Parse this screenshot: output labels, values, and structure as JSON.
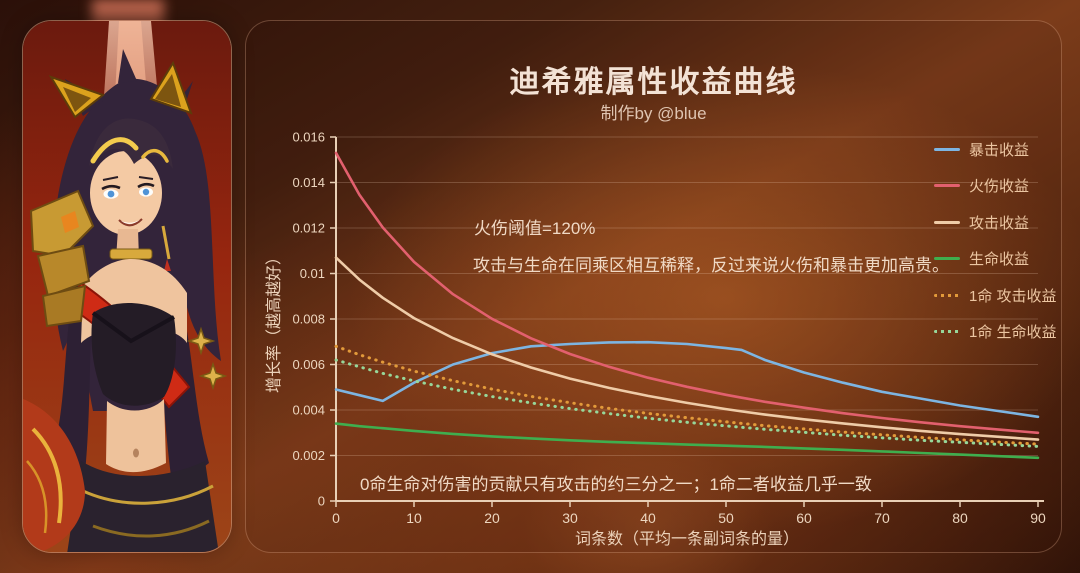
{
  "chart_data": {
    "type": "line",
    "title": "迪希雅属性收益曲线",
    "subtitle": "制作by @blue",
    "xlabel": "词条数（平均一条副词条的量）",
    "ylabel": "增长率（越高越好）",
    "xlim": [
      0,
      90
    ],
    "ylim": [
      0,
      0.016
    ],
    "xtick_labels": [
      "0",
      "10",
      "20",
      "30",
      "40",
      "50",
      "60",
      "70",
      "80",
      "90"
    ],
    "ytick_labels": [
      "0",
      "0.002",
      "0.004",
      "0.006",
      "0.008",
      "0.01",
      "0.012",
      "0.014",
      "0.016"
    ],
    "grid": true,
    "legend_position": "upper right, inside plot",
    "x": [
      0,
      3,
      6,
      10,
      15,
      20,
      25,
      30,
      35,
      40,
      45,
      50,
      52,
      55,
      60,
      65,
      70,
      75,
      80,
      85,
      90
    ],
    "series": [
      {
        "name": "暴击收益",
        "color": "#7db5e2",
        "style": "solid",
        "values": [
          0.0049,
          0.00465,
          0.0044,
          0.0052,
          0.006,
          0.0065,
          0.0068,
          0.0069,
          0.00697,
          0.00698,
          0.0069,
          0.00672,
          0.00664,
          0.0062,
          0.00565,
          0.0052,
          0.0048,
          0.0045,
          0.0042,
          0.00395,
          0.0037
        ]
      },
      {
        "name": "火伤收益",
        "color": "#e2606e",
        "style": "solid",
        "values": [
          0.0153,
          0.01346,
          0.01202,
          0.01051,
          0.00909,
          0.00801,
          0.00715,
          0.00646,
          0.0059,
          0.00542,
          0.00502,
          0.00467,
          0.00454,
          0.00436,
          0.0041,
          0.00386,
          0.00365,
          0.00346,
          0.00329,
          0.00314,
          0.003
        ]
      },
      {
        "name": "攻击收益",
        "color": "#efcca8",
        "style": "solid",
        "values": [
          0.0107,
          0.00973,
          0.00893,
          0.00804,
          0.00716,
          0.00645,
          0.00587,
          0.00538,
          0.00497,
          0.00462,
          0.00431,
          0.00404,
          0.00394,
          0.0038,
          0.00359,
          0.00341,
          0.00324,
          0.00308,
          0.00294,
          0.00282,
          0.0027
        ]
      },
      {
        "name": "生命收益",
        "color": "#3fae4e",
        "style": "solid",
        "values": [
          0.0034,
          0.00329,
          0.0032,
          0.00308,
          0.00295,
          0.00284,
          0.00275,
          0.00267,
          0.0026,
          0.00254,
          0.00248,
          0.00243,
          0.00241,
          0.00238,
          0.00231,
          0.00225,
          0.00218,
          0.00211,
          0.00204,
          0.00197,
          0.0019
        ]
      },
      {
        "name": "1命 攻击收益",
        "color": "#e29a3a",
        "style": "dotted",
        "values": [
          0.0068,
          0.00643,
          0.0061,
          0.00571,
          0.00529,
          0.00492,
          0.0046,
          0.00432,
          0.00407,
          0.00385,
          0.00366,
          0.00348,
          0.00341,
          0.00331,
          0.00317,
          0.00303,
          0.00291,
          0.00279,
          0.00269,
          0.00259,
          0.0025
        ]
      },
      {
        "name": "1命 生命收益",
        "color": "#97d79a",
        "style": "dotted",
        "values": [
          0.0062,
          0.0059,
          0.00561,
          0.00528,
          0.00491,
          0.00459,
          0.00431,
          0.00406,
          0.00384,
          0.00364,
          0.00346,
          0.0033,
          0.00324,
          0.00315,
          0.00302,
          0.00289,
          0.00278,
          0.00267,
          0.00258,
          0.00249,
          0.0024
        ]
      }
    ],
    "annotations": [
      "火伤阈值=120%",
      "攻击与生命在同乘区相互稀释，反过来说火伤和暴击更加高贵。",
      "0命生命对伤害的贡献只有攻击的约三分之一；1命二者收益几乎一致"
    ],
    "colors": {
      "axis": "#e9d0b6",
      "tick_text": "#edd6bf",
      "grid": "rgba(245,216,190,0.22)"
    }
  }
}
